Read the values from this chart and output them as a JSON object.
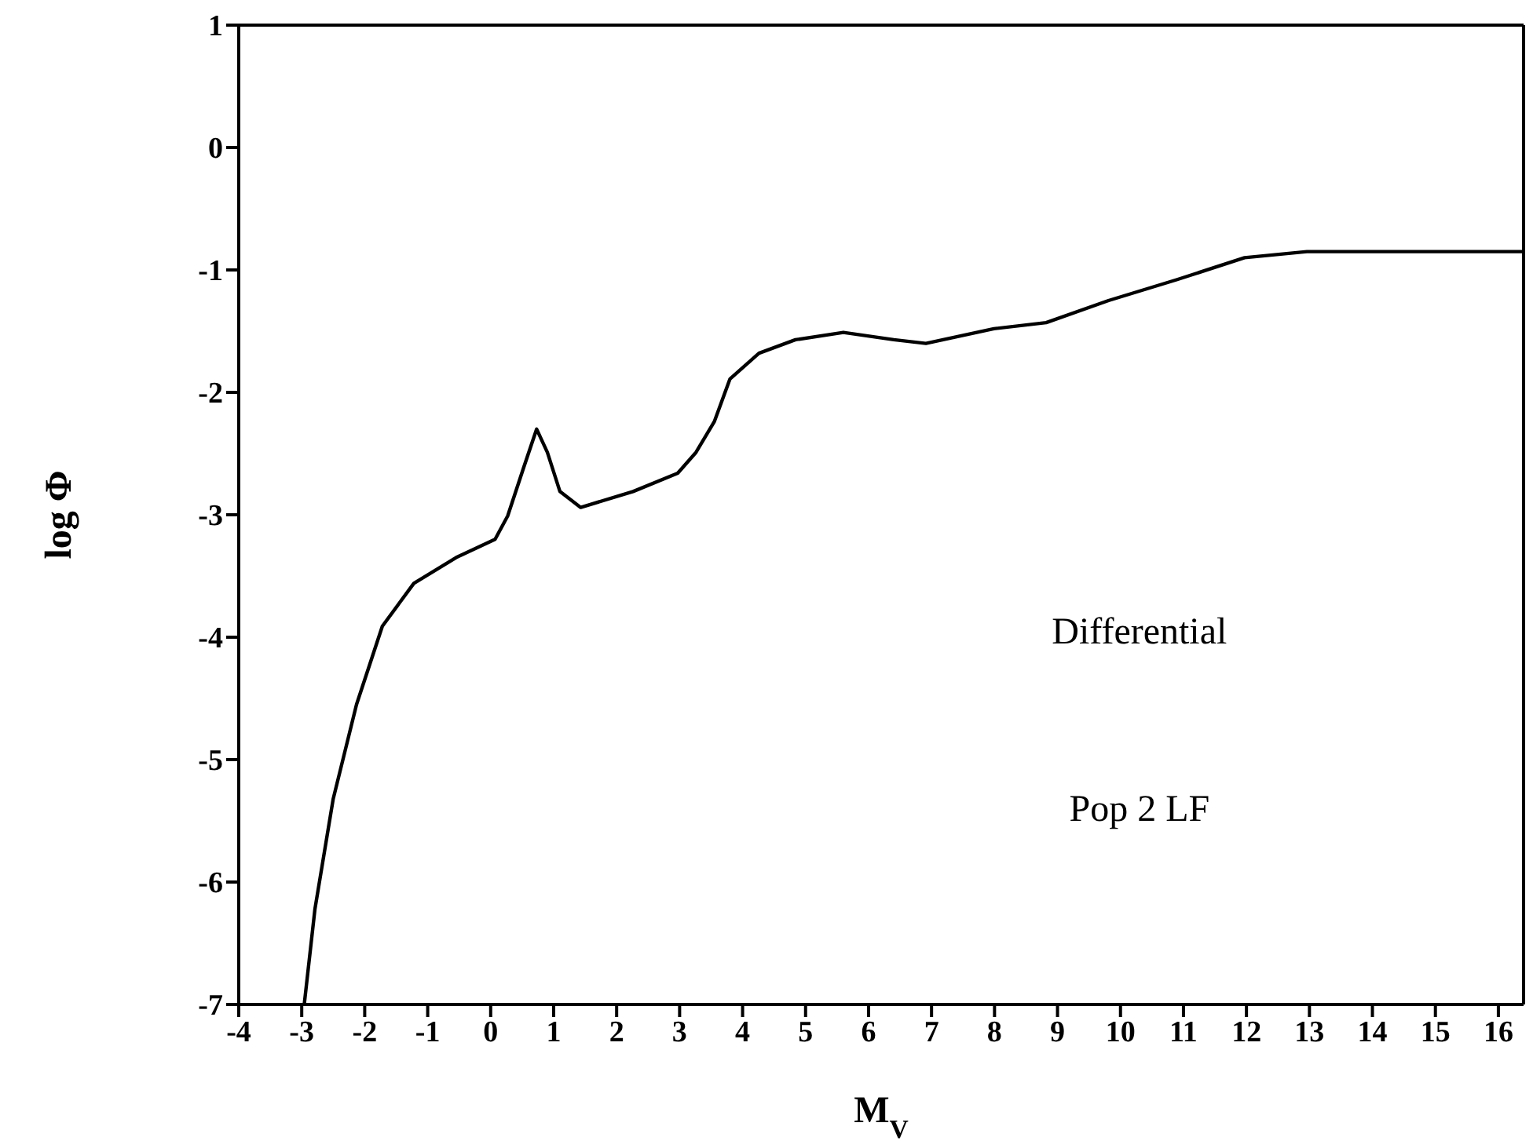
{
  "chart_data": {
    "type": "line",
    "xlabel": "M$_{V}$",
    "ylabel": "log Φ",
    "annotations": [
      "Differential",
      "Pop 2 LF"
    ],
    "x": [
      -2.96,
      -2.79,
      -2.5,
      -2.13,
      -1.72,
      -1.22,
      -0.55,
      0.07,
      0.27,
      0.52,
      0.73,
      0.9,
      1.1,
      1.43,
      2.26,
      2.97,
      3.26,
      3.55,
      3.8,
      4.26,
      4.84,
      5.6,
      6.4,
      6.91,
      7.99,
      8.82,
      9.81,
      10.89,
      11.97,
      12.96,
      16.4
    ],
    "series": [
      {
        "color": "#000000",
        "values": [
          -7.0,
          -6.22,
          -5.32,
          -4.55,
          -3.91,
          -3.56,
          -3.35,
          -3.2,
          -3.01,
          -2.62,
          -2.3,
          -2.49,
          -2.81,
          -2.94,
          -2.81,
          -2.66,
          -2.49,
          -2.24,
          -1.89,
          -1.68,
          -1.57,
          -1.51,
          -1.57,
          -1.6,
          -1.48,
          -1.43,
          -1.25,
          -1.08,
          -0.9,
          -0.85,
          -0.85
        ]
      }
    ],
    "xlim": [
      -4,
      16.4
    ],
    "xticks": [
      -4,
      -3,
      -2,
      -1,
      0,
      1,
      2,
      3,
      4,
      5,
      6,
      7,
      8,
      9,
      10,
      11,
      12,
      13,
      14,
      15,
      16
    ],
    "ylim": [
      -7,
      1
    ],
    "yticks": [
      -7,
      -6,
      -5,
      -4,
      -3,
      -2,
      -1,
      0,
      1
    ],
    "grid": false,
    "legend": false,
    "marker": "none",
    "line_style": "solid"
  }
}
